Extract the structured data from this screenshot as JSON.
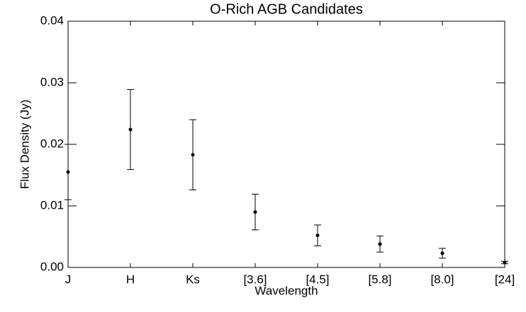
{
  "chart_data": {
    "type": "errorbar",
    "title": "O-Rich AGB Candidates",
    "x_label": "Wavelength",
    "y_label": "Flux Density (Jy)",
    "categories": [
      "J",
      "H",
      "Ks",
      "[3.6]",
      "[4.5]",
      "[5.8]",
      "[8.0]",
      "[24]"
    ],
    "values": [
      0.0155,
      0.0224,
      0.0183,
      0.009,
      0.0052,
      0.0038,
      0.0023,
      0.0008
    ],
    "errors": [
      0.0045,
      0.0065,
      0.0057,
      0.0029,
      0.0017,
      0.0013,
      0.0008,
      0.0002
    ],
    "color": "#000000",
    "ylim": [
      0,
      0.04
    ],
    "yticks": [
      {
        "value": 0,
        "label": "0.00"
      },
      {
        "value": 0.01,
        "label": "0.01"
      },
      {
        "value": 0.02,
        "label": "0.02"
      },
      {
        "value": 0.03,
        "label": "0.03"
      },
      {
        "value": 0.04,
        "label": "0.04"
      }
    ]
  }
}
